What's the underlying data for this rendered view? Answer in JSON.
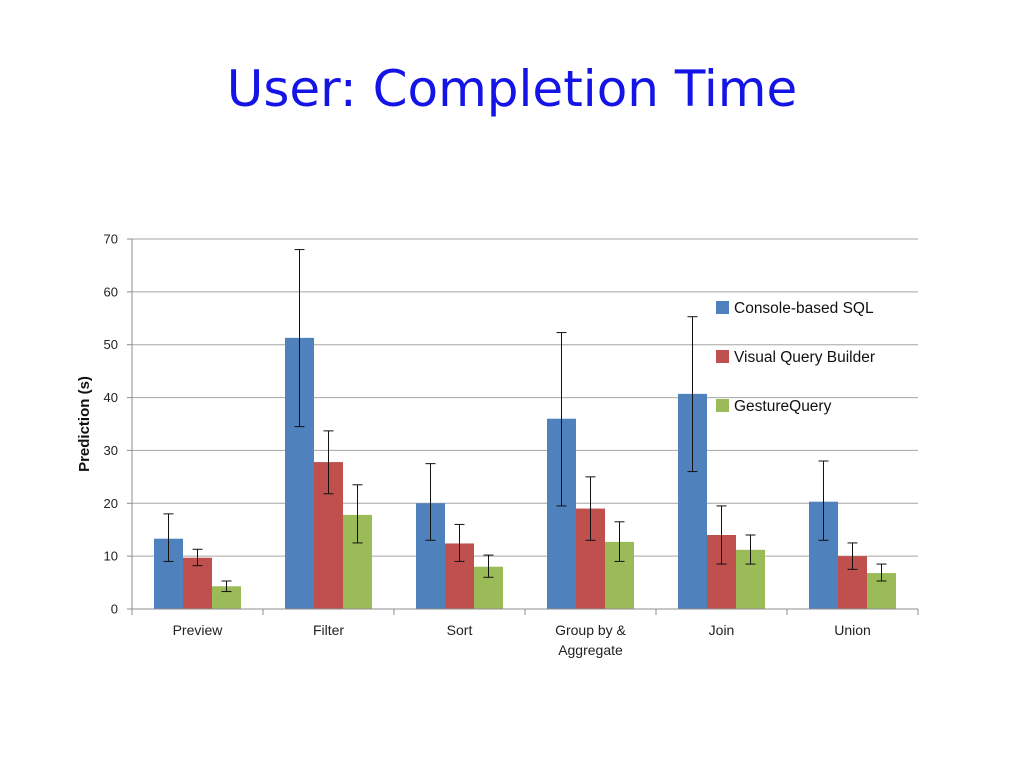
{
  "slide": {
    "title": "User: Completion Time"
  },
  "chart_data": {
    "type": "bar",
    "title": "",
    "xlabel": "",
    "ylabel": "Prediction (s)",
    "ylim": [
      0,
      70
    ],
    "yticks": [
      0,
      10,
      20,
      30,
      40,
      50,
      60,
      70
    ],
    "grid": true,
    "legend_position": "right",
    "categories": [
      "Preview",
      "Filter",
      "Sort",
      "Group by & Aggregate",
      "Join",
      "Union"
    ],
    "category_label_lines": [
      [
        "Preview"
      ],
      [
        "Filter"
      ],
      [
        "Sort"
      ],
      [
        "Group by &",
        "Aggregate"
      ],
      [
        "Join"
      ],
      [
        "Union"
      ]
    ],
    "series": [
      {
        "name": "Console-based SQL",
        "color": "#4f81bd",
        "values": [
          13.3,
          51.3,
          20.0,
          36.0,
          40.7,
          20.3
        ],
        "error_low": [
          9.0,
          34.5,
          13.0,
          19.5,
          26.0,
          13.0
        ],
        "error_high": [
          18.0,
          68.0,
          27.5,
          52.3,
          55.3,
          28.0
        ]
      },
      {
        "name": "Visual Query Builder",
        "color": "#c0504d",
        "values": [
          9.7,
          27.8,
          12.4,
          19.0,
          14.0,
          10.0
        ],
        "error_low": [
          8.2,
          21.8,
          9.0,
          13.0,
          8.5,
          7.5
        ],
        "error_high": [
          11.3,
          33.7,
          16.0,
          25.0,
          19.5,
          12.5
        ]
      },
      {
        "name": "GestureQuery",
        "color": "#9bbb59",
        "values": [
          4.3,
          17.8,
          8.0,
          12.7,
          11.2,
          6.8
        ],
        "error_low": [
          3.3,
          12.5,
          6.0,
          9.0,
          8.5,
          5.3
        ],
        "error_high": [
          5.3,
          23.5,
          10.2,
          16.5,
          14.0,
          8.5
        ]
      }
    ]
  }
}
